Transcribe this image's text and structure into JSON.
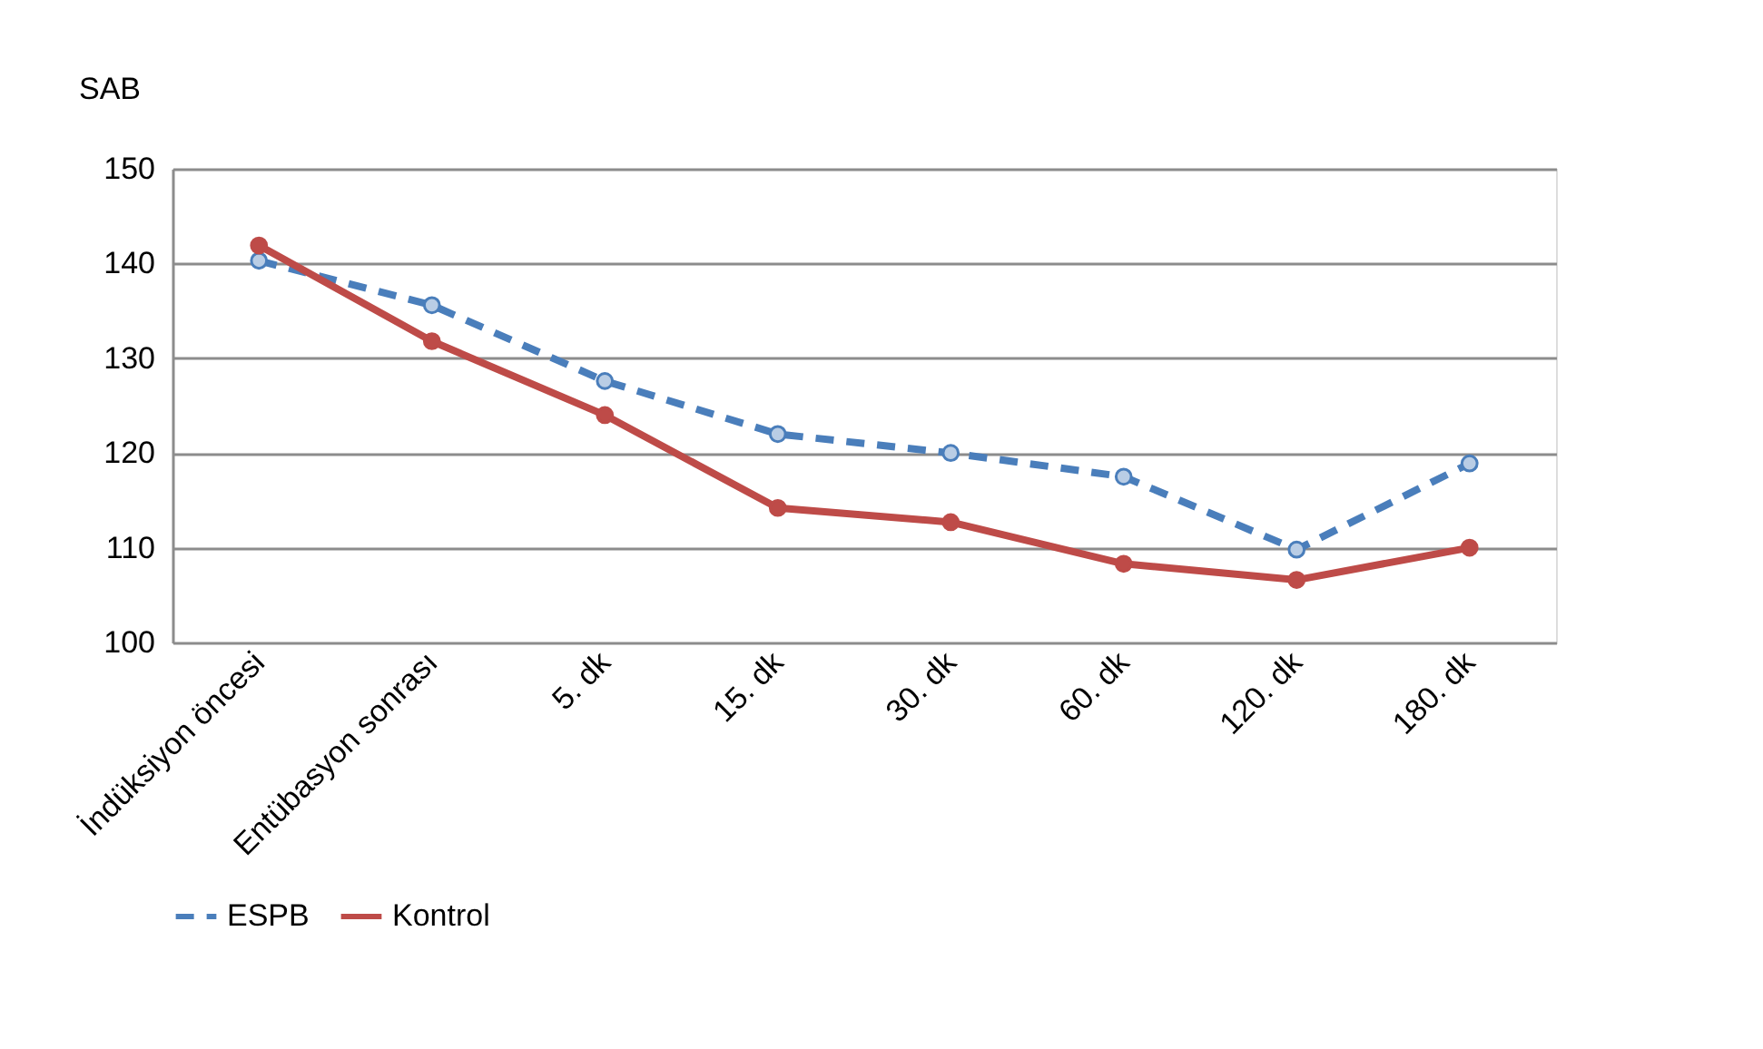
{
  "chart_data": {
    "type": "line",
    "ylabel": "SAB",
    "categories": [
      "İndüksiyon öncesi",
      "Entübasyon sonrası",
      "5. dk",
      "15. dk",
      "30. dk",
      "60. dk",
      "120. dk",
      "180. dk"
    ],
    "series": [
      {
        "name": "ESPB",
        "color": "#4a7ebb",
        "line_style": "dashed",
        "values": [
          140.3,
          135.6,
          127.6,
          122.0,
          120.0,
          117.5,
          109.8,
          118.9
        ]
      },
      {
        "name": "Kontrol",
        "color": "#be4b48",
        "line_style": "solid",
        "values": [
          141.9,
          131.8,
          124.0,
          114.2,
          112.7,
          108.3,
          106.6,
          110.0
        ]
      }
    ],
    "ylim": [
      100,
      150
    ],
    "yticks": [
      100,
      110,
      120,
      130,
      140,
      150
    ],
    "grid": "y",
    "legend": "bottom",
    "marker": "circle"
  }
}
